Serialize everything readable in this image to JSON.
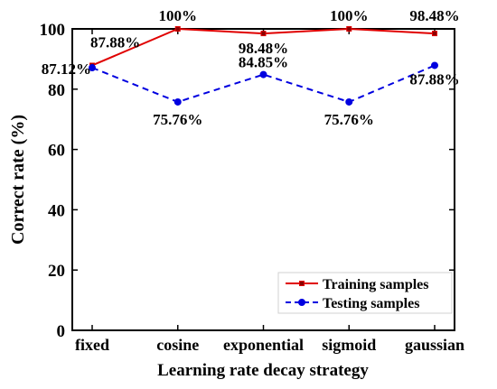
{
  "chart_data": {
    "type": "line",
    "title": "",
    "xlabel": "Learning rate decay strategy",
    "ylabel": "Correct rate (%)",
    "categories": [
      "fixed",
      "cosine",
      "exponential",
      "sigmoid",
      "gaussian"
    ],
    "ylim": [
      0,
      100
    ],
    "yticks": [
      0,
      20,
      40,
      60,
      80,
      100
    ],
    "grid": false,
    "legend_position": "bottom-right",
    "series": [
      {
        "name": "Training samples",
        "values": [
          87.88,
          100,
          98.48,
          100,
          98.48
        ],
        "labels": [
          "87.88%",
          "100%",
          "98.48%",
          "100%",
          "98.48%"
        ],
        "color": "#e00000",
        "line_style": "solid",
        "marker": "square"
      },
      {
        "name": "Testing samples",
        "values": [
          87.12,
          75.76,
          84.85,
          75.76,
          87.88
        ],
        "labels": [
          "87.12%",
          "75.76%",
          "84.85%",
          "75.76%",
          "87.88%"
        ],
        "color": "#0000e0",
        "line_style": "dashed",
        "marker": "circle"
      }
    ]
  }
}
